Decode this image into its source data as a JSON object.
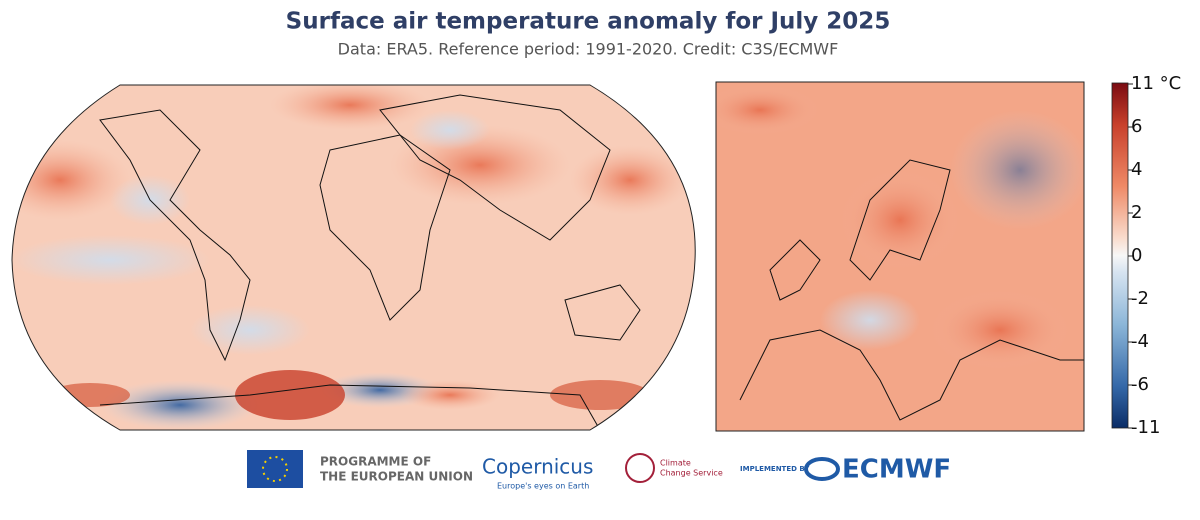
{
  "header": {
    "title": "Surface air temperature anomaly for July 2025",
    "subtitle": "Data: ERA5.  Reference period: 1991-2020.  Credit: C3S/ECMWF"
  },
  "colorbar": {
    "ticks": [
      {
        "value": 11,
        "label": "11 °C"
      },
      6,
      4,
      2,
      0,
      -2,
      -4,
      -6,
      -11
    ]
  },
  "logos": {
    "eu": [
      "PROGRAMME OF",
      "THE EUROPEAN UNION"
    ],
    "copernicus": [
      "Copernicus",
      "Europe's eyes on Earth"
    ],
    "climate": [
      "Climate",
      "Change Service"
    ],
    "ecmwf": [
      "IMPLEMENTED BY",
      "ECMWF"
    ]
  }
}
